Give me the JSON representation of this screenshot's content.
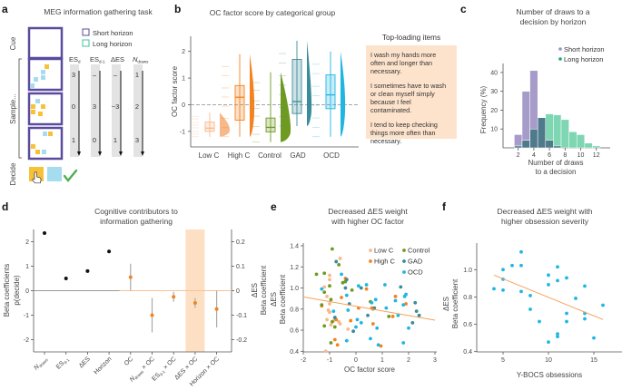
{
  "panel_a": {
    "label": "a",
    "title": "MEG information gathering task",
    "legend": [
      {
        "label": "Short horizon",
        "color": "#5b4b9e"
      },
      {
        "label": "Long horizon",
        "color": "#3fc49a"
      }
    ],
    "stages": {
      "cue": "Cue",
      "sample": "Sample...",
      "decide": "Decide"
    },
    "columns": [
      {
        "main": "ES",
        "sub": "d"
      },
      {
        "main": "ES",
        "sub": "d-1"
      },
      {
        "main": "ΔES",
        "sub": ""
      },
      {
        "main": "N",
        "sub": "draws"
      }
    ],
    "rows": [
      [
        "3",
        "–",
        "–",
        "1"
      ],
      [
        "0",
        "3",
        "−3",
        "2"
      ],
      [
        "1",
        "0",
        "1",
        "3"
      ]
    ],
    "colors": {
      "frame": "#5b4b9e",
      "yellow": "#f7c238",
      "blue": "#a6dcf0",
      "check": "#4caf50"
    }
  },
  "top_loading": {
    "title": "Top-loading items",
    "items": [
      "I wash my hands more often and longer than necessary.",
      "I sometimes have to wash or clean myself simply because I feel contaminated.",
      "I tend to keep checking things more often than necessary."
    ],
    "bg_color": "#fde3cc"
  },
  "chart_data": [
    {
      "panel": "b",
      "type": "box",
      "title": "OC factor score by categorical group",
      "ylabel": "OC factor score",
      "ylim": [
        -1.55,
        2.5
      ],
      "yticks": [
        "-1",
        "0",
        "1",
        "2"
      ],
      "reference_line": 0,
      "groups": [
        {
          "name": "Low C",
          "color": "#f7b98a",
          "min": -1.2,
          "q1": -1.0,
          "median": -0.88,
          "q3": -0.65,
          "max": -0.3
        },
        {
          "name": "High C",
          "color": "#f58220",
          "min": -1.2,
          "q1": -0.58,
          "median": 0.28,
          "q3": 0.72,
          "max": 1.9
        },
        {
          "name": "Control",
          "color": "#6f9a22",
          "min": -1.4,
          "q1": -1.02,
          "median": -0.85,
          "q3": -0.5,
          "max": 1.22
        },
        {
          "name": "GAD",
          "color": "#3a8c98",
          "min": -0.8,
          "q1": -0.33,
          "median": 0.12,
          "q3": 1.7,
          "max": 2.4
        },
        {
          "name": "OCD",
          "color": "#1fb6e3",
          "min": -1.2,
          "q1": -0.15,
          "median": 0.37,
          "q3": 1.12,
          "max": 2.0
        }
      ]
    },
    {
      "panel": "c",
      "type": "bar",
      "title": "Number of draws to a decision by horizon",
      "xlabel": "Number of draws to a decision",
      "ylabel": "Frequency (%)",
      "x": [
        2,
        3,
        4,
        5,
        6,
        7,
        8,
        9,
        10,
        11,
        12
      ],
      "xticks": [
        "2",
        "4",
        "6",
        "8",
        "10",
        "12"
      ],
      "yticks": [
        "10",
        "20",
        "30",
        "40"
      ],
      "ylim": [
        0,
        45
      ],
      "legend": "top-right",
      "series": [
        {
          "name": "Short horizon",
          "color": "#a69bc9",
          "values": [
            7,
            30,
            41,
            16,
            4,
            1,
            0,
            0,
            0,
            0,
            0
          ]
        },
        {
          "name": "Long horizon",
          "color": "#7fd6b3",
          "values": [
            1,
            4,
            10,
            16,
            18,
            17.5,
            15,
            8.5,
            7,
            2.5,
            1
          ]
        }
      ],
      "overlap_color": "#4f7a8c",
      "legend_colors": [
        "#9b8fc4",
        "#1aa87a"
      ]
    },
    {
      "panel": "d",
      "type": "scatter",
      "title": "Cognitive contributors to information gathering",
      "ylabel_left": "Beta coefficients p(decide)",
      "ylabel_left_lines": [
        "Beta coefficients",
        "p(decide)"
      ],
      "ylabel_right_lines": [
        "ΔES",
        "Beta coefficient"
      ],
      "ylim_left": [
        -2.5,
        2.5
      ],
      "ylim_right": [
        -0.25,
        0.25
      ],
      "yticks_left": [
        "-2",
        "-1",
        "0",
        "1",
        "2"
      ],
      "yticks_right": [
        "-0.2",
        "-0.1",
        "0",
        "0.1",
        "0.2"
      ],
      "categories": [
        {
          "main": "N",
          "sub": "draws",
          "suffix": ""
        },
        {
          "main": "ES",
          "sub": "d-1",
          "suffix": ""
        },
        {
          "main": "ΔES",
          "sub": "",
          "suffix": ""
        },
        {
          "main": "Horizon",
          "sub": "",
          "suffix": ""
        },
        {
          "main": "OC",
          "sub": "",
          "suffix": ""
        },
        {
          "main": "N",
          "sub": "draws",
          "suffix": " × OC"
        },
        {
          "main": "ES",
          "sub": "d-1",
          "suffix": " × OC"
        },
        {
          "main": "ΔES",
          "sub": "",
          "suffix": " × OC"
        },
        {
          "main": "Horizon",
          "sub": "",
          "suffix": " × OC"
        }
      ],
      "left_series": {
        "axis": "left",
        "color": "#111111",
        "values": [
          2.35,
          0.5,
          0.8,
          1.6
        ]
      },
      "right_series": {
        "axis": "right",
        "color": "#f58220",
        "values": [
          0.055,
          -0.1,
          -0.025,
          -0.05,
          -0.075
        ],
        "ci_low": [
          0.0,
          -0.17,
          -0.045,
          -0.07,
          -0.15
        ],
        "ci_high": [
          0.11,
          -0.03,
          -0.005,
          -0.03,
          0.0
        ]
      },
      "highlight_category": "ΔES × OC",
      "highlight_color": "#fde0c4"
    },
    {
      "panel": "e",
      "type": "scatter",
      "title": "Decreased ΔES weight with higher OC factor",
      "xlabel": "OC factor score",
      "ylabel_lines": [
        "ΔES",
        "Beta coefficient"
      ],
      "xlim": [
        -2,
        3
      ],
      "ylim": [
        0.4,
        1.4
      ],
      "xticks": [
        "-2",
        "-1",
        "0",
        "1",
        "2",
        "3"
      ],
      "yticks": [
        "0.4",
        "0.6",
        "0.8",
        "1.0",
        "1.2",
        "1.4"
      ],
      "legend": "top-right",
      "fit_line": {
        "x": [
          -2,
          3
        ],
        "y": [
          0.915,
          0.695
        ],
        "color": "#f7a05a"
      },
      "series": [
        {
          "name": "Low C",
          "color": "#f7b98a",
          "points": [
            [
              -0.6,
              1.28
            ],
            [
              -1.0,
              1.12
            ],
            [
              -1.0,
              1.08
            ],
            [
              -1.2,
              1.01
            ],
            [
              -1.1,
              0.92
            ],
            [
              -1.0,
              0.85
            ],
            [
              -1.05,
              0.79
            ],
            [
              -1.0,
              0.77
            ],
            [
              -1.1,
              0.7
            ],
            [
              -0.95,
              0.65
            ],
            [
              -0.85,
              0.69
            ],
            [
              -0.65,
              0.68
            ],
            [
              -0.6,
              0.66
            ],
            [
              -0.3,
              0.61
            ],
            [
              -1.15,
              0.4
            ]
          ]
        },
        {
          "name": "High C",
          "color": "#f58220",
          "points": [
            [
              -1.3,
              0.83
            ],
            [
              -0.4,
              1.09
            ],
            [
              -0.55,
              0.91
            ],
            [
              -0.75,
              0.7
            ],
            [
              -0.8,
              0.51
            ],
            [
              -0.7,
              0.46
            ],
            [
              -0.2,
              0.69
            ],
            [
              0.1,
              0.81
            ],
            [
              0.4,
              0.99
            ],
            [
              0.6,
              0.81
            ],
            [
              0.65,
              0.66
            ],
            [
              0.95,
              0.45
            ],
            [
              1.4,
              0.73
            ],
            [
              1.5,
              0.92
            ],
            [
              1.9,
              0.85
            ],
            [
              0.65,
              0.8
            ]
          ]
        },
        {
          "name": "Control",
          "color": "#6f9a22",
          "points": [
            [
              -0.9,
              1.37
            ],
            [
              -1.5,
              1.13
            ],
            [
              -1.2,
              1.14
            ],
            [
              -0.65,
              1.22
            ],
            [
              -1.0,
              1.02
            ],
            [
              -0.5,
              1.05
            ],
            [
              -0.4,
              1.06
            ],
            [
              -0.15,
              0.98
            ],
            [
              -1.2,
              0.96
            ],
            [
              -1.3,
              0.84
            ],
            [
              -0.95,
              0.89
            ],
            [
              0.55,
              0.87
            ],
            [
              -1.2,
              0.64
            ],
            [
              -0.8,
              0.63
            ],
            [
              -0.95,
              0.48
            ],
            [
              1.25,
              0.73
            ],
            [
              -0.9,
              0.68
            ]
          ]
        },
        {
          "name": "GAD",
          "color": "#3a8c98",
          "points": [
            [
              -0.75,
              1.25
            ],
            [
              -0.35,
              1.08
            ],
            [
              -0.4,
              1.0
            ],
            [
              0.2,
              1.0
            ],
            [
              -0.25,
              0.85
            ],
            [
              -0.8,
              0.72
            ],
            [
              -0.1,
              0.59
            ],
            [
              0.45,
              0.74
            ],
            [
              0.7,
              0.81
            ],
            [
              1.7,
              1.01
            ],
            [
              2.25,
              0.86
            ],
            [
              2.3,
              0.78
            ],
            [
              2.4,
              0.74
            ],
            [
              2.15,
              0.67
            ]
          ]
        },
        {
          "name": "OCD",
          "color": "#1fb6e3",
          "points": [
            [
              -0.55,
              1.13
            ],
            [
              -1.3,
              0.99
            ],
            [
              -0.35,
              0.93
            ],
            [
              -0.85,
              0.78
            ],
            [
              0.1,
              1.02
            ],
            [
              0.4,
              1.03
            ],
            [
              1.1,
              1.03
            ],
            [
              0.6,
              0.86
            ],
            [
              0.75,
              0.89
            ],
            [
              1.5,
              0.88
            ],
            [
              1.85,
              0.92
            ],
            [
              1.9,
              0.94
            ],
            [
              1.8,
              0.84
            ],
            [
              1.15,
              0.81
            ],
            [
              1.6,
              0.74
            ],
            [
              0.05,
              0.7
            ],
            [
              0.2,
              0.67
            ],
            [
              0.0,
              0.63
            ],
            [
              0.8,
              0.62
            ],
            [
              2.0,
              0.62
            ],
            [
              0.55,
              0.52
            ],
            [
              -0.35,
              0.5
            ],
            [
              0.85,
              0.46
            ],
            [
              1.8,
              0.48
            ],
            [
              -0.3,
              0.79
            ]
          ]
        }
      ]
    },
    {
      "panel": "f",
      "type": "scatter",
      "title": "Decreased ΔES weight with higher obsession severity",
      "xlabel": "Y-BOCS obsessions",
      "ylabel_lines": [
        "ΔES",
        "Beta coefficient"
      ],
      "xlim": [
        2.5,
        18.5
      ],
      "ylim": [
        0.4,
        1.15
      ],
      "xticks": [
        "5",
        "10",
        "15"
      ],
      "yticks": [
        "0.4",
        "0.6",
        "0.8",
        "1.0"
      ],
      "fit_line": {
        "x": [
          4,
          16
        ],
        "y": [
          0.96,
          0.635
        ],
        "color": "#f7a05a"
      },
      "series": [
        {
          "color": "#1fb6e3",
          "points": [
            [
              4,
              0.86
            ],
            [
              5,
              1.0
            ],
            [
              5,
              0.93
            ],
            [
              5,
              0.85
            ],
            [
              6,
              1.03
            ],
            [
              7,
              1.13
            ],
            [
              7,
              1.03
            ],
            [
              7,
              0.84
            ],
            [
              8,
              0.81
            ],
            [
              8,
              0.71
            ],
            [
              9,
              0.62
            ],
            [
              10,
              0.96
            ],
            [
              10,
              0.89
            ],
            [
              10,
              0.47
            ],
            [
              11,
              1.02
            ],
            [
              11,
              0.92
            ],
            [
              11,
              0.53
            ],
            [
              11,
              0.51
            ],
            [
              12,
              0.94
            ],
            [
              12,
              0.68
            ],
            [
              12,
              0.62
            ],
            [
              13,
              0.79
            ],
            [
              14,
              0.88
            ],
            [
              14,
              0.68
            ],
            [
              14,
              0.64
            ],
            [
              15,
              0.5
            ],
            [
              16,
              0.74
            ]
          ]
        }
      ]
    }
  ],
  "panel_labels": {
    "b": "b",
    "c": "c",
    "d": "d",
    "e": "e",
    "f": "f"
  },
  "titles": {
    "c": [
      "Number of draws to a",
      "decision by horizon"
    ],
    "d": [
      "Cognitive contributors to",
      "information gathering"
    ],
    "e": [
      "Decreased ΔES weight",
      "with higher OC factor"
    ],
    "f": [
      "Decreased ΔES weight with",
      "higher obsession severity"
    ],
    "c_xlabel": [
      "Number of draws",
      "to a decision"
    ]
  }
}
